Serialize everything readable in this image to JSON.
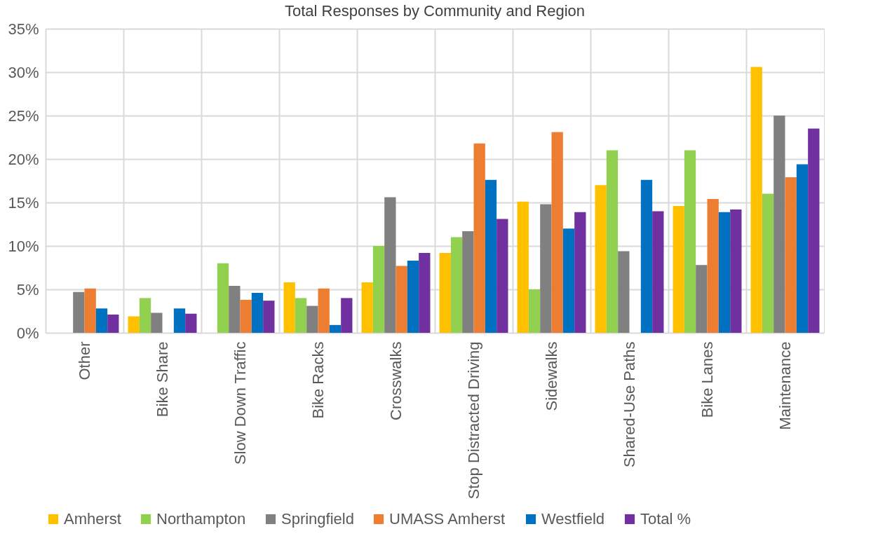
{
  "chart_data": {
    "type": "bar",
    "title": "Total Responses by Community and Region",
    "categories": [
      "Other",
      "Bike Share",
      "Slow Down Traffic",
      "Bike Racks",
      "Crosswalks",
      "Stop Distracted Driving",
      "Sidewalks",
      "Shared-Use Paths",
      "Bike Lanes",
      "Maintenance"
    ],
    "series": [
      {
        "name": "Amherst",
        "color": "#ffc000",
        "values": [
          null,
          1.9,
          null,
          5.8,
          5.8,
          9.2,
          15.1,
          17.0,
          14.6,
          30.6
        ]
      },
      {
        "name": "Northampton",
        "color": "#92d050",
        "values": [
          null,
          4.0,
          8.0,
          4.0,
          10.0,
          11.0,
          5.0,
          21.0,
          21.0,
          16.0
        ]
      },
      {
        "name": "Springfield",
        "color": "#808080",
        "values": [
          4.7,
          2.3,
          5.4,
          3.1,
          15.6,
          11.7,
          14.8,
          9.4,
          7.8,
          25.0
        ]
      },
      {
        "name": "UMASS Amherst",
        "color": "#ed7d31",
        "values": [
          5.1,
          null,
          3.8,
          5.1,
          7.7,
          21.8,
          23.1,
          null,
          15.4,
          17.9
        ]
      },
      {
        "name": "Westfield",
        "color": "#0070c0",
        "values": [
          2.8,
          2.8,
          4.6,
          0.9,
          8.3,
          17.6,
          12.0,
          17.6,
          13.9,
          19.4
        ]
      },
      {
        "name": "Total %",
        "color": "#7030a0",
        "values": [
          2.1,
          2.2,
          3.7,
          4.0,
          9.2,
          13.1,
          13.9,
          14.0,
          14.2,
          23.5
        ]
      }
    ],
    "ylim": [
      0,
      35
    ],
    "yticks": [
      {
        "value": 0,
        "label": "0%"
      },
      {
        "value": 5,
        "label": "5%"
      },
      {
        "value": 10,
        "label": "10%"
      },
      {
        "value": 15,
        "label": "15%"
      },
      {
        "value": 20,
        "label": "20%"
      },
      {
        "value": 25,
        "label": "25%"
      },
      {
        "value": 30,
        "label": "30%"
      },
      {
        "value": 35,
        "label": "35%"
      }
    ],
    "grid": true,
    "legend": "bottom"
  }
}
